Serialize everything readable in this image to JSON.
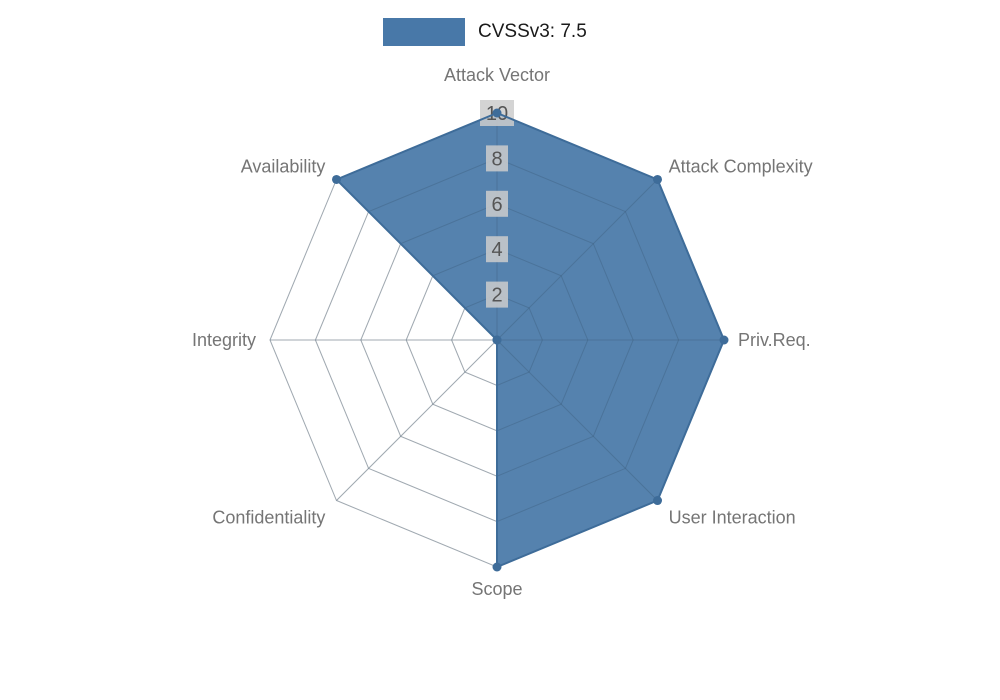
{
  "chart_data": {
    "type": "radar",
    "title": "CVSSv3: 7.5",
    "legend": [
      {
        "label": "CVSSv3: 7.5",
        "swatch_color": "#4878A8"
      }
    ],
    "legend_position": "top-center",
    "categories": [
      "Attack Vector",
      "Attack Complexity",
      "Priv.Req.",
      "User Interaction",
      "Scope",
      "Confidentiality",
      "Integrity",
      "Availability"
    ],
    "series": [
      {
        "name": "CVSSv3: 7.5",
        "values": [
          10,
          10,
          10,
          10,
          10,
          0,
          0,
          10
        ]
      }
    ],
    "ticks": [
      2,
      4,
      6,
      8,
      10
    ],
    "rlim": [
      0,
      10
    ],
    "grid": true,
    "colors": {
      "fill": "#4878A8",
      "stroke": "#3E6C99",
      "grid": "#CCCCCC",
      "grid_inner": "#3D5A75",
      "axis_label": "#757575",
      "tick_text": "#555555",
      "tick_box": "#CCCCCC",
      "legend_text": "#1A1A1A"
    }
  }
}
